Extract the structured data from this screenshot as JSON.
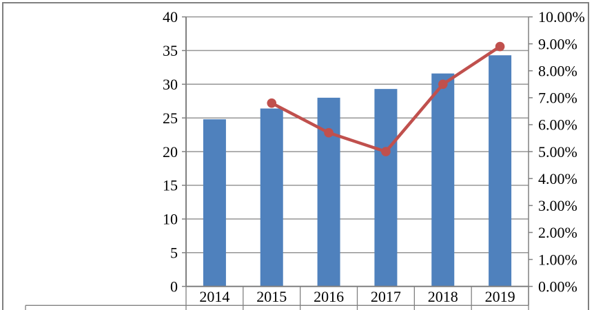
{
  "colors": {
    "bar": "#4F81BD",
    "line": "#C0504D",
    "gridline": "#959595",
    "axis": "#808080",
    "cell_border": "#808080",
    "frame": "#7F7F7F",
    "text": "#000000",
    "background": "#FFFFFF"
  },
  "chart_data": {
    "type": "combo",
    "title": "",
    "xlabel": "",
    "ylabel": "",
    "grid": "horizontal",
    "legend": "none",
    "categories": [
      "2014",
      "2015",
      "2016",
      "2017",
      "2018",
      "2019"
    ],
    "series": [
      {
        "name": "value-bars",
        "type": "bar",
        "axis": "left",
        "values": [
          24.8,
          26.4,
          28.0,
          29.3,
          31.6,
          34.3
        ]
      },
      {
        "name": "growth-rate-line",
        "type": "line",
        "axis": "right",
        "unit": "%",
        "values": [
          null,
          6.8,
          5.7,
          5.0,
          7.5,
          8.9
        ]
      }
    ],
    "left_axis": {
      "min": 0,
      "max": 40,
      "step": 5,
      "tick_labels": [
        "0",
        "5",
        "10",
        "15",
        "20",
        "25",
        "30",
        "35",
        "40"
      ]
    },
    "right_axis": {
      "min": 0,
      "max": 10,
      "step": 1,
      "tick_labels": [
        "0.00%",
        "1.00%",
        "2.00%",
        "3.00%",
        "4.00%",
        "5.00%",
        "6.00%",
        "7.00%",
        "8.00%",
        "9.00%",
        "10.00%"
      ]
    }
  }
}
